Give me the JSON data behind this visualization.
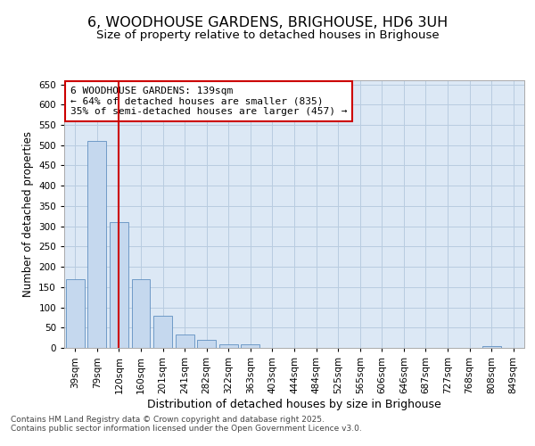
{
  "title": "6, WOODHOUSE GARDENS, BRIGHOUSE, HD6 3UH",
  "subtitle": "Size of property relative to detached houses in Brighouse",
  "xlabel": "Distribution of detached houses by size in Brighouse",
  "ylabel": "Number of detached properties",
  "categories": [
    "39sqm",
    "79sqm",
    "120sqm",
    "160sqm",
    "201sqm",
    "241sqm",
    "282sqm",
    "322sqm",
    "363sqm",
    "403sqm",
    "444sqm",
    "484sqm",
    "525sqm",
    "565sqm",
    "606sqm",
    "646sqm",
    "687sqm",
    "727sqm",
    "768sqm",
    "808sqm",
    "849sqm"
  ],
  "values": [
    170,
    510,
    310,
    170,
    80,
    33,
    20,
    8,
    8,
    0,
    0,
    0,
    0,
    0,
    0,
    0,
    0,
    0,
    0,
    5,
    0
  ],
  "bar_color": "#c5d8ee",
  "bar_edge_color": "#6090c0",
  "vline_x": 2,
  "vline_color": "#cc0000",
  "ylim": [
    0,
    660
  ],
  "yticks": [
    0,
    50,
    100,
    150,
    200,
    250,
    300,
    350,
    400,
    450,
    500,
    550,
    600,
    650
  ],
  "annotation_text": "6 WOODHOUSE GARDENS: 139sqm\n← 64% of detached houses are smaller (835)\n35% of semi-detached houses are larger (457) →",
  "annotation_box_color": "#ffffff",
  "annotation_box_edge": "#cc0000",
  "footer_line1": "Contains HM Land Registry data © Crown copyright and database right 2025.",
  "footer_line2": "Contains public sector information licensed under the Open Government Licence v3.0.",
  "background_color": "#ffffff",
  "plot_bg_color": "#dce8f5",
  "grid_color": "#b8cce0",
  "title_fontsize": 11.5,
  "subtitle_fontsize": 9.5,
  "tick_fontsize": 7.5,
  "ylabel_fontsize": 8.5,
  "xlabel_fontsize": 9,
  "annotation_fontsize": 8,
  "footer_fontsize": 6.5
}
